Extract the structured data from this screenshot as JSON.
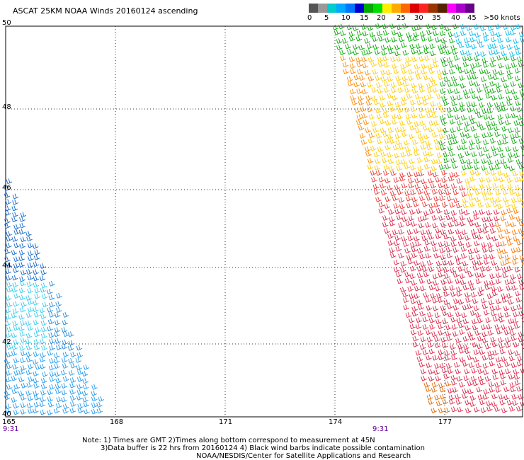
{
  "title": "ASCAT 25KM NOAA Winds 20160124 ascending",
  "colorbar": {
    "colors": [
      "#555555",
      "#999999",
      "#00cccc",
      "#00aaff",
      "#0077ff",
      "#0000cc",
      "#00aa00",
      "#00dd00",
      "#ffee00",
      "#ffaa00",
      "#ff6600",
      "#dd0000",
      "#ff2222",
      "#993300",
      "#552200",
      "#ff00ff",
      "#aa00cc",
      "#660088"
    ],
    "labels": [
      "0",
      "5",
      "10",
      "15",
      "20",
      "25",
      "30",
      "35",
      "40",
      "45",
      ">50 knots"
    ]
  },
  "map": {
    "lat_labels": [
      "50",
      "48",
      "46",
      "44",
      "42",
      "40"
    ],
    "lon_labels": [
      "165",
      "168",
      "171",
      "174",
      "177"
    ],
    "time_labels": [
      "9:31",
      "9:31"
    ]
  },
  "notes": [
    "Note: 1) Times are GMT 2)Times along bottom correspond to measurement at 45N",
    "3)Data buffer is 22 hrs from 20160124 4) Black wind barbs indicate possible contamination",
    "NOAA/NESDIS/Center for Satellite Applications and Research"
  ]
}
